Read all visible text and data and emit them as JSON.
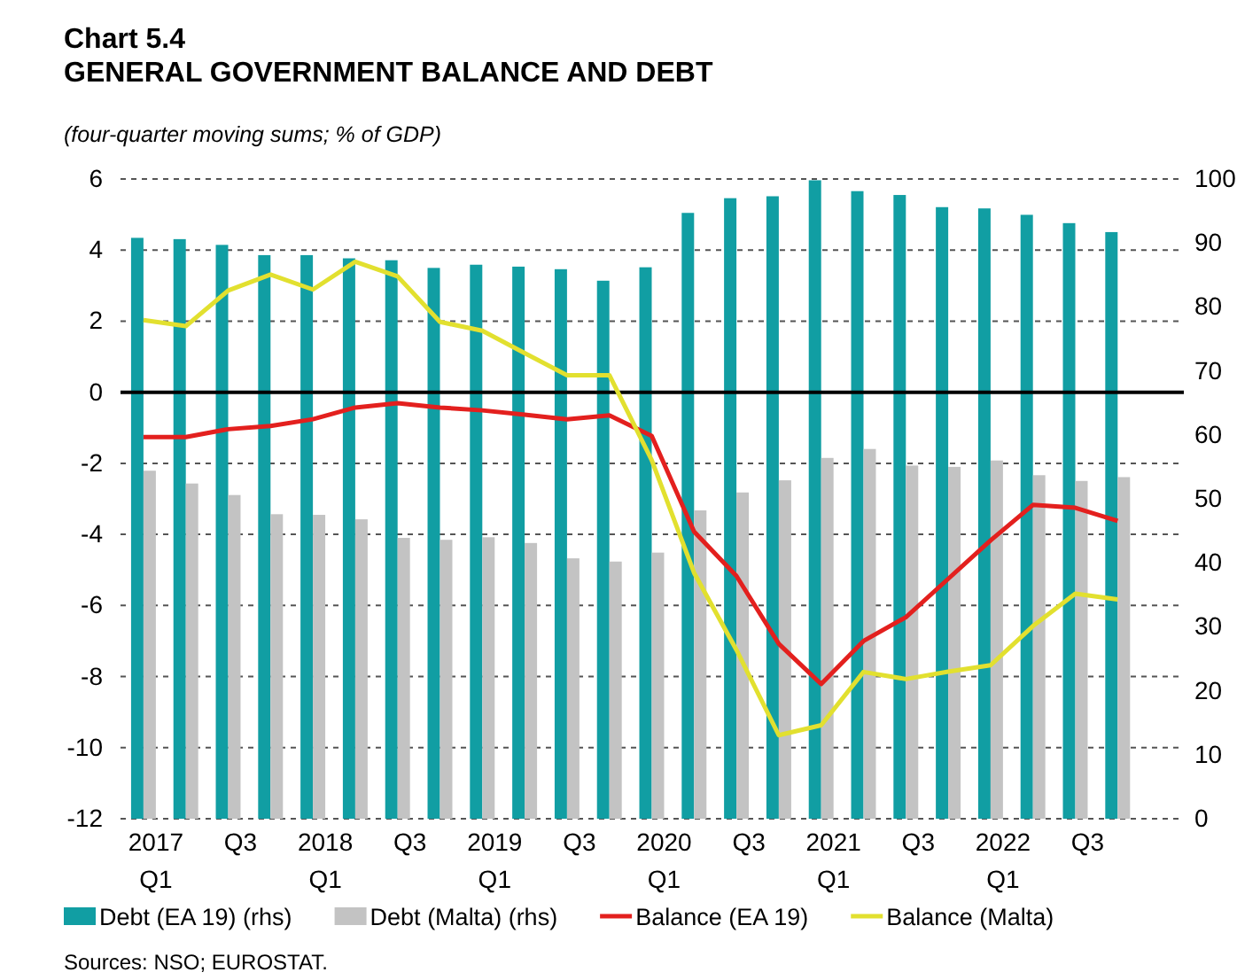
{
  "chart_data": {
    "type": "bar",
    "title": "Chart 5.4\nGENERAL GOVERNMENT BALANCE AND DEBT",
    "subtitle": "(four-quarter moving sums; % of GDP)",
    "categories": [
      "2017\nQ1",
      null,
      "Q3",
      null,
      "2018\nQ1",
      null,
      "Q3",
      null,
      "2019\nQ1",
      null,
      "Q3",
      null,
      "2020\nQ1",
      null,
      "Q3",
      null,
      "2021\nQ1",
      null,
      "Q3",
      null,
      "2022\nQ1",
      null,
      "Q3",
      null
    ],
    "series": [
      {
        "name": "Debt (EA 19) (rhs)",
        "axis": "y2",
        "color": "#119ea3",
        "values": [
          90.8,
          90.6,
          89.7,
          88.1,
          88.1,
          87.6,
          87.3,
          86.1,
          86.6,
          86.3,
          85.9,
          84.1,
          86.2,
          94.7,
          97.0,
          97.3,
          99.8,
          98.1,
          97.5,
          95.6,
          95.4,
          94.4,
          93.1,
          91.7
        ]
      },
      {
        "name": "Debt (Malta) (rhs)",
        "axis": "y2",
        "color": "#c3c3c3",
        "values": [
          54.4,
          52.4,
          50.6,
          47.6,
          47.5,
          46.8,
          43.9,
          43.6,
          44.0,
          43.1,
          40.7,
          40.2,
          41.6,
          48.2,
          51.0,
          52.9,
          56.4,
          57.8,
          55.2,
          55.0,
          56.0,
          53.7,
          52.8,
          53.4
        ]
      },
      {
        "name": "Balance (EA 19)",
        "type": "line",
        "color": "#e3201e",
        "values": [
          -1.26,
          -1.26,
          -1.04,
          -0.95,
          -0.76,
          -0.43,
          -0.31,
          -0.43,
          -0.51,
          -0.63,
          -0.76,
          -0.65,
          -1.23,
          -3.92,
          -5.17,
          -7.08,
          -8.21,
          -7.0,
          -6.33,
          -5.25,
          -4.17,
          -3.17,
          -3.25,
          -3.62
        ]
      },
      {
        "name": "Balance (Malta)",
        "type": "line",
        "color": "#e2e02f",
        "values": [
          2.03,
          1.86,
          2.86,
          3.31,
          2.89,
          3.67,
          3.26,
          1.98,
          1.73,
          1.1,
          0.48,
          0.48,
          -1.91,
          -5.08,
          -7.25,
          -9.65,
          -9.37,
          -7.87,
          -8.07,
          -7.86,
          -7.68,
          -6.58,
          -5.67,
          -5.83
        ]
      }
    ],
    "ylim": [
      -12,
      6
    ],
    "yticks": [
      -12,
      -10,
      -8,
      -6,
      -4,
      -2,
      0,
      2,
      4,
      6
    ],
    "y2lim": [
      0,
      100
    ],
    "y2ticks": [
      0,
      10,
      20,
      30,
      40,
      50,
      60,
      70,
      80,
      90,
      100
    ],
    "grid": "y",
    "line_style": "solid",
    "marker": "none",
    "legend": "bottom",
    "ref_lines": [
      {
        "axis": "y",
        "value": 0,
        "color": "#000000"
      }
    ],
    "annotations": [
      "Sources: NSO; EUROSTAT."
    ]
  }
}
